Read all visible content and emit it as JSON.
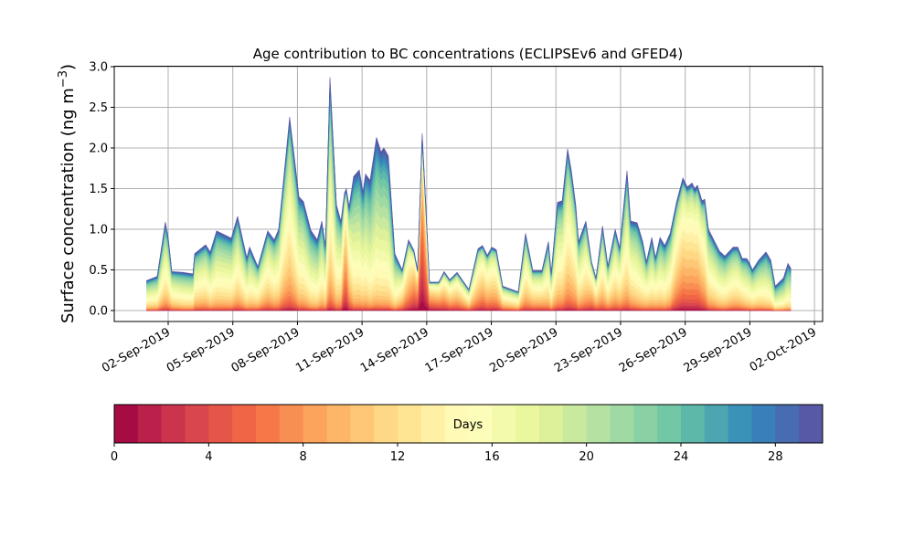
{
  "chart_data": {
    "type": "area",
    "stacked": true,
    "title": "Age contribution to BC concentrations (ECLIPSEv6 and GFED4)",
    "xlabel": "",
    "ylabel": "Surface concentration (ng m",
    "ylabel_sup": "−3",
    "ylabel_close": ")",
    "ylim": [
      -0.15,
      3.0
    ],
    "yticks": [
      0.0,
      0.5,
      1.0,
      1.5,
      2.0,
      2.5,
      3.0
    ],
    "ytick_labels": [
      "0.0",
      "0.5",
      "1.0",
      "1.5",
      "2.0",
      "2.5",
      "3.0"
    ],
    "x_units": "day of September 2019",
    "xlim": [
      -0.03,
      32.4
    ],
    "xticks": [
      2,
      5,
      8,
      11,
      14,
      17,
      20,
      23,
      26,
      29,
      32
    ],
    "xtick_labels": [
      "02-Sep-2019",
      "05-Sep-2019",
      "08-Sep-2019",
      "11-Sep-2019",
      "14-Sep-2019",
      "17-Sep-2019",
      "20-Sep-2019",
      "23-Sep-2019",
      "26-Sep-2019",
      "29-Sep-2019",
      "02-Oct-2019"
    ],
    "grid": true,
    "x": [
      1.0,
      1.49,
      1.87,
      2.0,
      2.17,
      2.68,
      3.15,
      3.23,
      3.74,
      3.95,
      4.25,
      4.93,
      5.22,
      5.65,
      5.78,
      6.16,
      6.62,
      6.92,
      7.13,
      7.34,
      7.64,
      8.07,
      8.28,
      8.62,
      8.92,
      9.13,
      9.3,
      9.51,
      9.81,
      10.02,
      10.19,
      10.27,
      10.4,
      10.61,
      10.87,
      11.04,
      11.16,
      11.37,
      11.67,
      11.88,
      12.01,
      12.22,
      12.52,
      12.86,
      13.16,
      13.41,
      13.58,
      13.79,
      13.92,
      14.13,
      14.56,
      14.81,
      15.07,
      15.41,
      15.96,
      16.38,
      16.59,
      16.81,
      17.02,
      17.23,
      17.53,
      18.25,
      18.59,
      18.93,
      19.35,
      19.65,
      19.78,
      20.07,
      20.29,
      20.54,
      20.71,
      20.92,
      21.05,
      21.39,
      21.65,
      21.86,
      22.16,
      22.41,
      22.75,
      22.96,
      23.3,
      23.47,
      23.77,
      24.03,
      24.2,
      24.45,
      24.62,
      24.83,
      25.05,
      25.3,
      25.6,
      25.89,
      26.1,
      26.32,
      26.44,
      26.57,
      26.78,
      26.91,
      27.08,
      27.59,
      27.84,
      28.23,
      28.44,
      28.65,
      28.86,
      28.99,
      29.12,
      29.41,
      29.75,
      29.97,
      30.18,
      30.56,
      30.77,
      30.9
    ],
    "total": [
      0.37,
      0.42,
      1.09,
      0.9,
      0.48,
      0.47,
      0.45,
      0.7,
      0.81,
      0.72,
      0.98,
      0.89,
      1.16,
      0.65,
      0.78,
      0.54,
      0.98,
      0.87,
      1.0,
      1.57,
      2.38,
      1.4,
      1.34,
      0.99,
      0.87,
      1.1,
      0.8,
      2.87,
      1.3,
      1.1,
      1.45,
      1.5,
      1.28,
      1.65,
      1.73,
      1.46,
      1.68,
      1.6,
      2.13,
      1.95,
      2.0,
      1.9,
      0.7,
      0.5,
      0.87,
      0.74,
      0.5,
      2.18,
      1.5,
      0.35,
      0.35,
      0.48,
      0.38,
      0.47,
      0.26,
      0.76,
      0.8,
      0.68,
      0.78,
      0.75,
      0.3,
      0.23,
      0.95,
      0.49,
      0.49,
      0.85,
      0.46,
      1.33,
      1.35,
      1.99,
      1.73,
      1.3,
      0.85,
      1.1,
      0.6,
      0.4,
      1.04,
      0.55,
      1.0,
      0.77,
      1.72,
      1.1,
      1.08,
      0.85,
      0.6,
      0.9,
      0.65,
      0.9,
      0.8,
      0.95,
      1.34,
      1.63,
      1.52,
      1.57,
      1.5,
      1.54,
      1.35,
      1.37,
      1.0,
      0.73,
      0.67,
      0.78,
      0.78,
      0.64,
      0.64,
      0.58,
      0.5,
      0.62,
      0.72,
      0.62,
      0.3,
      0.4,
      0.58,
      0.52
    ],
    "mean_age_days": [
      17,
      17,
      16,
      16,
      16,
      17,
      17,
      16,
      16,
      17,
      17,
      17,
      16,
      17,
      17,
      16,
      15,
      16,
      16,
      15,
      15,
      17,
      17,
      18,
      18,
      17,
      17,
      16,
      17,
      16,
      10,
      10,
      14,
      18,
      18,
      18,
      18,
      19,
      19,
      19,
      19,
      19,
      18,
      14,
      12,
      9,
      8,
      5,
      7,
      9,
      10,
      11,
      12,
      12,
      14,
      13,
      12,
      13,
      13,
      13,
      14,
      15,
      15,
      14,
      14,
      16,
      16,
      16,
      16,
      15,
      15,
      15,
      16,
      15,
      12,
      13,
      15,
      15,
      15,
      15,
      16,
      16,
      17,
      17,
      16,
      17,
      16,
      17,
      17,
      16,
      13,
      12,
      12,
      12,
      12,
      12,
      13,
      14,
      16,
      17,
      17,
      16,
      16,
      16,
      17,
      17,
      17,
      17,
      18,
      18,
      19,
      19,
      19,
      19
    ],
    "colorbar": {
      "label": "Days",
      "vmin": 0,
      "vmax": 30,
      "n_bins": 30,
      "ticks": [
        0,
        4,
        8,
        12,
        16,
        20,
        24,
        28
      ],
      "tick_labels": [
        "0",
        "4",
        "8",
        "12",
        "16",
        "20",
        "24",
        "28"
      ],
      "colormap_stops": [
        "#9e0142",
        "#d53e4f",
        "#f46d43",
        "#fdae61",
        "#fee08b",
        "#ffffbf",
        "#e6f598",
        "#abdda4",
        "#66c2a5",
        "#3288bd",
        "#5e4fa2"
      ]
    }
  }
}
